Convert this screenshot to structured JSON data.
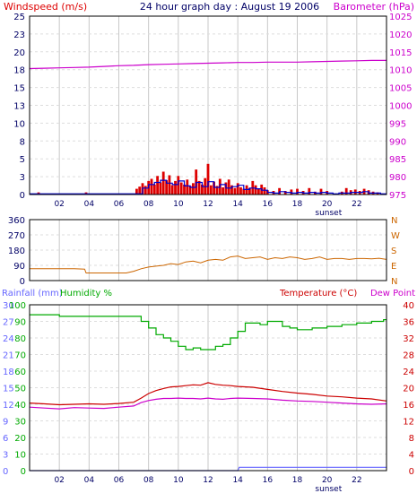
{
  "title": "24 hour graph day : August 19 2006",
  "colors": {
    "wind": "#dd0000",
    "gust": "#0000cc",
    "baro": "#cc00cc",
    "dir": "#cc6600",
    "rain": "#6666ff",
    "hum": "#00aa00",
    "temp": "#cc0000",
    "dew": "#cc00cc",
    "label_dark": "#000066",
    "grid_v": "#c8c8c8",
    "grid_h": "#dddddd",
    "frame": "#000000"
  },
  "x_ticks": [
    "02",
    "04",
    "06",
    "08",
    "10",
    "12",
    "14",
    "16",
    "18",
    "20",
    "22"
  ],
  "x_tick_hours": [
    2,
    4,
    6,
    8,
    10,
    12,
    14,
    16,
    18,
    20,
    22
  ],
  "sunset_label": "sunset",
  "sunset_hour": 20.1,
  "chart_data": [
    {
      "type": "bar",
      "title": "24 hour graph day : August 19 2006",
      "left_label": "Windspeed (m/s)",
      "right_label": "Barometer (hPa)",
      "left_ticks": [
        "25",
        "23",
        "20",
        "18",
        "15",
        "13",
        "10",
        "8",
        "5",
        "3",
        "0"
      ],
      "right_ticks": [
        "1025",
        "1020",
        "1015",
        "1010",
        "1005",
        "1000",
        "995",
        "990",
        "985",
        "980",
        "975"
      ],
      "ylim_left": [
        0,
        25
      ],
      "ylim_right": [
        975,
        1025
      ],
      "series": [
        {
          "name": "Windspeed",
          "type": "bar",
          "x": [
            0.6,
            3.8,
            7.2,
            7.4,
            7.6,
            7.8,
            8.0,
            8.2,
            8.4,
            8.6,
            8.8,
            9.0,
            9.2,
            9.4,
            9.6,
            9.8,
            10.0,
            10.2,
            10.4,
            10.6,
            10.8,
            11.0,
            11.2,
            11.4,
            11.6,
            11.8,
            12.0,
            12.2,
            12.4,
            12.6,
            12.8,
            13.0,
            13.2,
            13.4,
            13.6,
            13.8,
            14.0,
            14.2,
            14.4,
            14.6,
            14.8,
            15.0,
            15.2,
            15.4,
            15.6,
            15.8,
            16.0,
            16.4,
            16.8,
            17.2,
            17.6,
            18.0,
            18.4,
            18.8,
            19.2,
            19.6,
            20.0,
            21.0,
            21.3,
            21.6,
            21.9,
            22.2,
            22.5,
            22.8,
            23.1,
            23.4
          ],
          "values": [
            0.3,
            0.3,
            0.8,
            1.1,
            1.6,
            1.2,
            1.9,
            2.2,
            1.4,
            2.6,
            1.7,
            3.2,
            2.0,
            2.7,
            1.3,
            1.9,
            2.6,
            1.7,
            1.4,
            2.1,
            1.2,
            1.6,
            3.5,
            1.9,
            1.4,
            2.3,
            4.3,
            1.3,
            1.8,
            1.2,
            2.2,
            1.0,
            1.7,
            2.1,
            1.3,
            0.9,
            1.6,
            1.0,
            0.8,
            1.3,
            0.9,
            1.9,
            1.3,
            0.8,
            1.4,
            1.0,
            0.6,
            0.5,
            0.9,
            0.5,
            0.7,
            0.8,
            0.5,
            0.9,
            0.4,
            0.8,
            0.5,
            0.4,
            0.9,
            0.6,
            0.7,
            0.5,
            0.8,
            0.6,
            0.4,
            0.3
          ]
        },
        {
          "name": "Gust",
          "type": "line",
          "x": [
            0,
            7.2,
            7.6,
            8.0,
            8.4,
            8.8,
            9.2,
            9.6,
            10.0,
            10.4,
            10.8,
            11.2,
            11.6,
            12.0,
            12.4,
            12.8,
            13.2,
            13.6,
            14.0,
            14.4,
            14.8,
            15.2,
            15.6,
            16.0,
            16.4,
            16.8,
            17.2,
            17.6,
            18.0,
            18.4,
            18.8,
            19.2,
            19.6,
            20.0,
            20.4,
            20.8,
            21.2,
            21.6,
            22.0,
            22.4,
            22.8,
            23.2,
            23.6,
            24
          ],
          "values": [
            0.1,
            0.1,
            0.9,
            1.4,
            1.7,
            2.0,
            1.6,
            1.4,
            1.9,
            1.2,
            1.0,
            1.7,
            1.1,
            1.8,
            1.0,
            1.4,
            0.9,
            1.1,
            1.3,
            0.7,
            0.9,
            0.8,
            0.6,
            0.3,
            0.2,
            0.4,
            0.3,
            0.2,
            0.3,
            0.2,
            0.3,
            0.2,
            0.3,
            0.2,
            0.1,
            0.2,
            0.2,
            0.3,
            0.3,
            0.4,
            0.2,
            0.2,
            0.1,
            0.1
          ]
        },
        {
          "name": "Barometer",
          "type": "line",
          "axis": "right",
          "x": [
            0,
            1,
            2,
            3,
            4,
            5,
            6,
            7,
            8,
            9,
            10,
            11,
            12,
            13,
            14,
            15,
            16,
            17,
            18,
            19,
            20,
            21,
            22,
            23,
            24
          ],
          "values": [
            1010.3,
            1010.4,
            1010.5,
            1010.6,
            1010.7,
            1010.9,
            1011.1,
            1011.2,
            1011.4,
            1011.5,
            1011.6,
            1011.7,
            1011.8,
            1011.9,
            1012.0,
            1012.0,
            1012.1,
            1012.1,
            1012.1,
            1012.2,
            1012.3,
            1012.4,
            1012.5,
            1012.6,
            1012.6
          ]
        }
      ]
    },
    {
      "type": "line",
      "left_ticks": [
        "360",
        "270",
        "180",
        "90",
        "0"
      ],
      "right_ticks": [
        "N",
        "W",
        "S",
        "E",
        "N"
      ],
      "ylim": [
        0,
        360
      ],
      "series": [
        {
          "name": "Wind direction",
          "x": [
            0,
            1,
            2,
            3,
            3.7,
            3.8,
            5,
            6.5,
            7,
            7.5,
            8,
            8.5,
            9,
            9.5,
            10,
            10.5,
            11,
            11.5,
            12,
            12.5,
            13,
            13.5,
            14,
            14.5,
            15,
            15.5,
            16,
            16.5,
            17,
            17.5,
            18,
            18.5,
            19,
            19.5,
            20,
            20.5,
            21,
            21.5,
            22,
            22.5,
            23,
            23.5,
            24
          ],
          "values": [
            70,
            70,
            70,
            70,
            68,
            45,
            45,
            45,
            55,
            70,
            80,
            85,
            90,
            100,
            95,
            110,
            115,
            105,
            120,
            125,
            120,
            140,
            145,
            130,
            135,
            140,
            125,
            135,
            130,
            140,
            135,
            125,
            130,
            140,
            125,
            130,
            130,
            125,
            130,
            130,
            128,
            132,
            125
          ]
        }
      ]
    },
    {
      "type": "line",
      "left_label_1": "Rainfall (mm)",
      "left_label_2": "Humidity %",
      "right_label_1": "Temperature (°C)",
      "right_label_2": "Dew Point",
      "rain_ticks": [
        "30",
        "27",
        "24",
        "21",
        "18",
        "15",
        "12",
        "9",
        "6",
        "3",
        "0"
      ],
      "hum_ticks": [
        "100",
        "90",
        "80",
        "70",
        "60",
        "50",
        "40",
        "30",
        "20",
        "10",
        "0"
      ],
      "temp_ticks": [
        "40",
        "36",
        "32",
        "28",
        "24",
        "20",
        "16",
        "12",
        "8",
        "4",
        "0"
      ],
      "ylim_rain": [
        0,
        30
      ],
      "ylim_hum": [
        0,
        100
      ],
      "ylim_temp": [
        0,
        40
      ],
      "series": [
        {
          "name": "Humidity",
          "axis": "hum",
          "x": [
            0,
            1,
            2,
            3,
            4,
            5,
            6,
            7,
            7.5,
            8,
            8.5,
            9,
            9.5,
            10,
            10.5,
            11,
            11.5,
            12,
            12.5,
            13,
            13.5,
            14,
            14.5,
            15,
            15.5,
            16,
            16.5,
            17,
            17.5,
            18,
            19,
            20,
            21,
            22,
            23,
            23.8,
            24
          ],
          "values": [
            94,
            94,
            93,
            93,
            93,
            93,
            93,
            93,
            90,
            86,
            82,
            80,
            78,
            75,
            73,
            74,
            73,
            73,
            75,
            76,
            80,
            84,
            89,
            89,
            88,
            90,
            90,
            87,
            86,
            85,
            86,
            87,
            88,
            89,
            90,
            91,
            91
          ]
        },
        {
          "name": "Temperature",
          "axis": "temp",
          "x": [
            0,
            1,
            2,
            3,
            4,
            5,
            6,
            7,
            7.5,
            8,
            8.5,
            9,
            9.5,
            10,
            10.5,
            11,
            11.5,
            12,
            12.5,
            13,
            13.5,
            14,
            15,
            16,
            17,
            18,
            19,
            20,
            21,
            22,
            23,
            24
          ],
          "values": [
            16.3,
            16.1,
            15.9,
            16.0,
            16.1,
            16.0,
            16.2,
            16.5,
            17.5,
            18.6,
            19.3,
            19.8,
            20.2,
            20.3,
            20.5,
            20.7,
            20.6,
            21.2,
            20.8,
            20.6,
            20.5,
            20.3,
            20.1,
            19.6,
            19.1,
            18.7,
            18.4,
            18.0,
            17.8,
            17.5,
            17.3,
            16.8
          ]
        },
        {
          "name": "Dew Point",
          "axis": "temp",
          "x": [
            0,
            1,
            2,
            3,
            4,
            5,
            6,
            7,
            7.5,
            8,
            8.5,
            9,
            9.5,
            10,
            10.5,
            11,
            11.5,
            12,
            12.5,
            13,
            13.5,
            14,
            15,
            16,
            17,
            18,
            19,
            20,
            21,
            22,
            23,
            24
          ],
          "values": [
            15.3,
            15.1,
            14.9,
            15.2,
            15.1,
            15.0,
            15.3,
            15.6,
            16.4,
            16.9,
            17.2,
            17.4,
            17.4,
            17.5,
            17.4,
            17.4,
            17.3,
            17.5,
            17.3,
            17.2,
            17.4,
            17.5,
            17.4,
            17.3,
            17.0,
            16.8,
            16.7,
            16.5,
            16.3,
            16.1,
            16.0,
            16.1
          ]
        },
        {
          "name": "Rainfall",
          "axis": "rain",
          "x": [
            0,
            14,
            14.1,
            24
          ],
          "values": [
            0,
            0,
            0.6,
            0.6
          ]
        }
      ]
    }
  ]
}
